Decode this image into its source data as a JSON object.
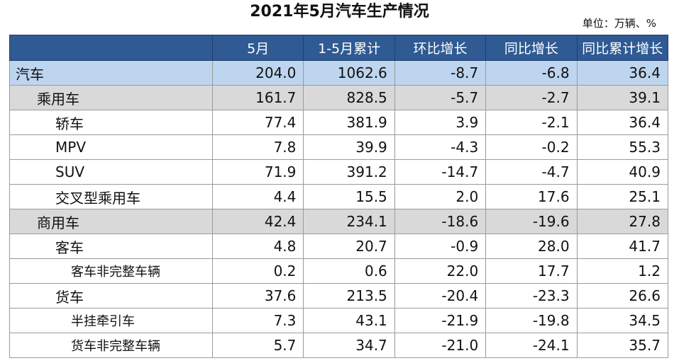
{
  "title": "2021年5月汽车生产情况",
  "unit": "单位：万辆、%",
  "columns": [
    "",
    "5月",
    "1-5月累计",
    "环比增长",
    "同比增长",
    "同比累计增长"
  ],
  "rows": [
    {
      "label": "汽车",
      "level": 0,
      "style": "top",
      "values": [
        "204.0",
        "1062.6",
        "-8.7",
        "-6.8",
        "36.4"
      ]
    },
    {
      "label": "乘用车",
      "level": 1,
      "style": "sub",
      "values": [
        "161.7",
        "828.5",
        "-5.7",
        "-2.7",
        "39.1"
      ]
    },
    {
      "label": "轿车",
      "level": 2,
      "style": "plain",
      "values": [
        "77.4",
        "381.9",
        "3.9",
        "-2.1",
        "36.4"
      ]
    },
    {
      "label": "MPV",
      "level": 2,
      "style": "plain",
      "values": [
        "7.8",
        "39.9",
        "-4.3",
        "-0.2",
        "55.3"
      ]
    },
    {
      "label": "SUV",
      "level": 2,
      "style": "plain",
      "values": [
        "71.9",
        "391.2",
        "-14.7",
        "-4.7",
        "40.9"
      ]
    },
    {
      "label": "交叉型乘用车",
      "level": 2,
      "style": "plain",
      "values": [
        "4.4",
        "15.5",
        "2.0",
        "17.6",
        "25.1"
      ]
    },
    {
      "label": "商用车",
      "level": 1,
      "style": "sub",
      "values": [
        "42.4",
        "234.1",
        "-18.6",
        "-19.6",
        "27.8"
      ]
    },
    {
      "label": "客车",
      "level": 2,
      "style": "plain",
      "values": [
        "4.8",
        "20.7",
        "-0.9",
        "28.0",
        "41.7"
      ]
    },
    {
      "label": "客车非完整车辆",
      "level": 3,
      "style": "plain",
      "values": [
        "0.2",
        "0.6",
        "22.0",
        "17.7",
        "1.2"
      ]
    },
    {
      "label": "货车",
      "level": 2,
      "style": "plain",
      "values": [
        "37.6",
        "213.5",
        "-20.4",
        "-23.3",
        "26.6"
      ]
    },
    {
      "label": "半挂牵引车",
      "level": 3,
      "style": "plain",
      "values": [
        "7.3",
        "43.1",
        "-21.9",
        "-19.8",
        "34.5"
      ]
    },
    {
      "label": "货车非完整车辆",
      "level": 3,
      "style": "plain",
      "values": [
        "5.7",
        "34.7",
        "-21.0",
        "-24.1",
        "35.7"
      ]
    }
  ]
}
